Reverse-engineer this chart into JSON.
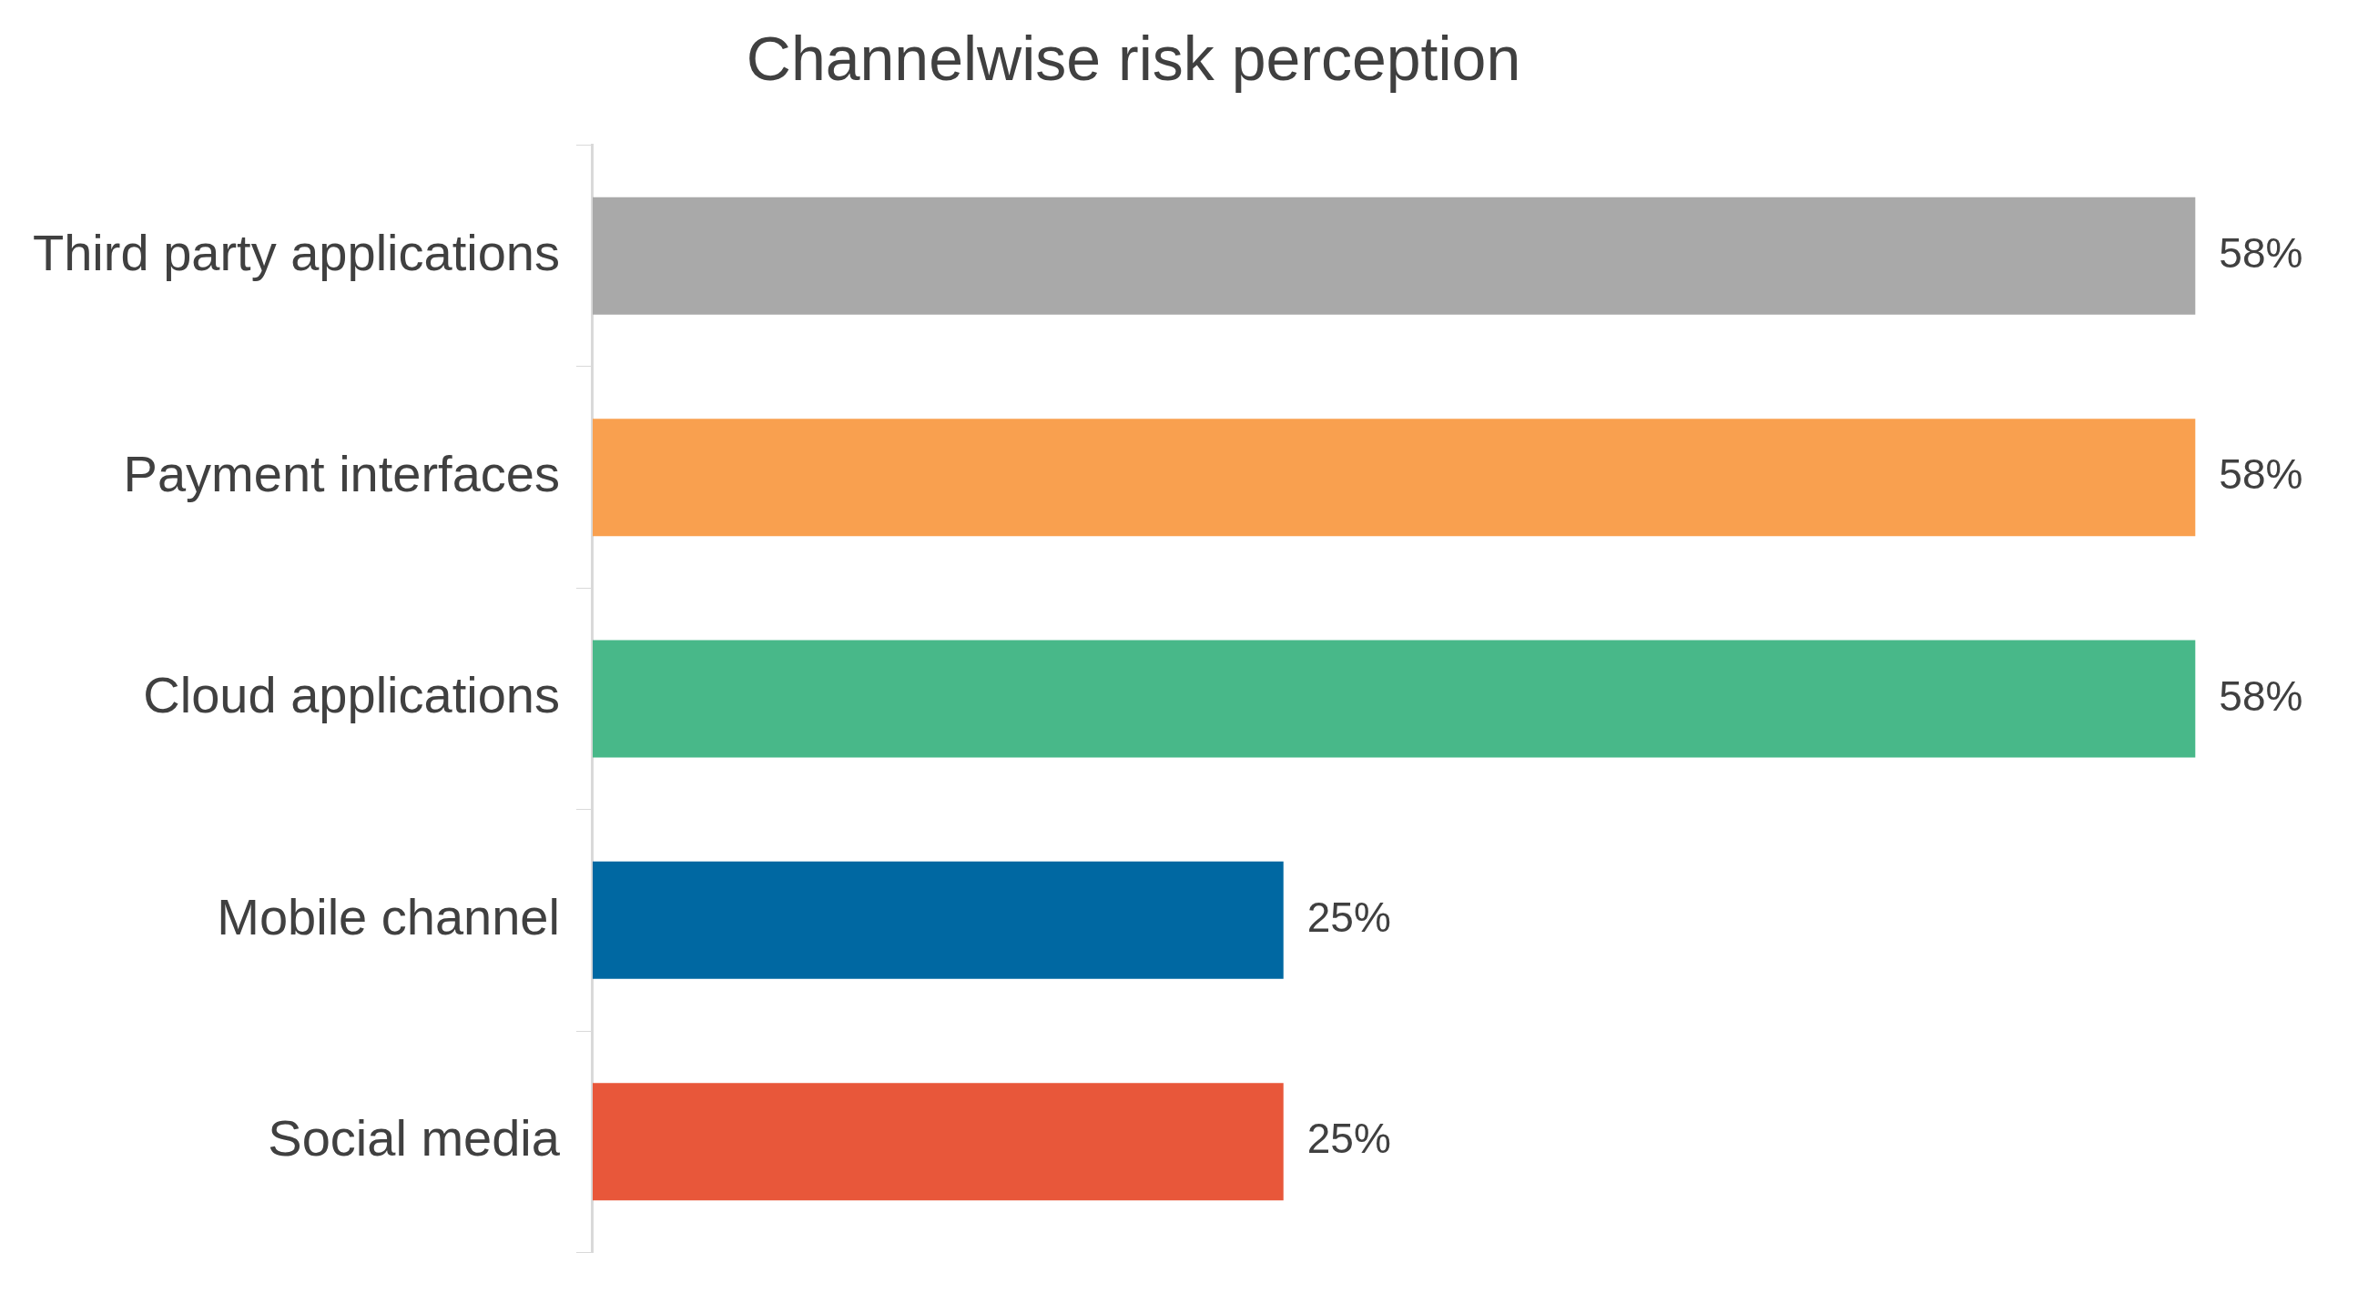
{
  "chart_data": {
    "type": "bar",
    "orientation": "horizontal",
    "title": "Channelwise risk perception",
    "categories": [
      "Third party applications",
      "Payment interfaces",
      "Cloud applications",
      "Mobile channel",
      "Social media"
    ],
    "values": [
      58,
      58,
      58,
      25,
      25
    ],
    "colors": [
      "#a9a9a9",
      "#f9a04f",
      "#48b889",
      "#0068a2",
      "#e8573a"
    ],
    "value_labels": [
      "58%",
      "58%",
      "58%",
      "25%",
      "25%"
    ],
    "grid": false,
    "legend": false
  }
}
